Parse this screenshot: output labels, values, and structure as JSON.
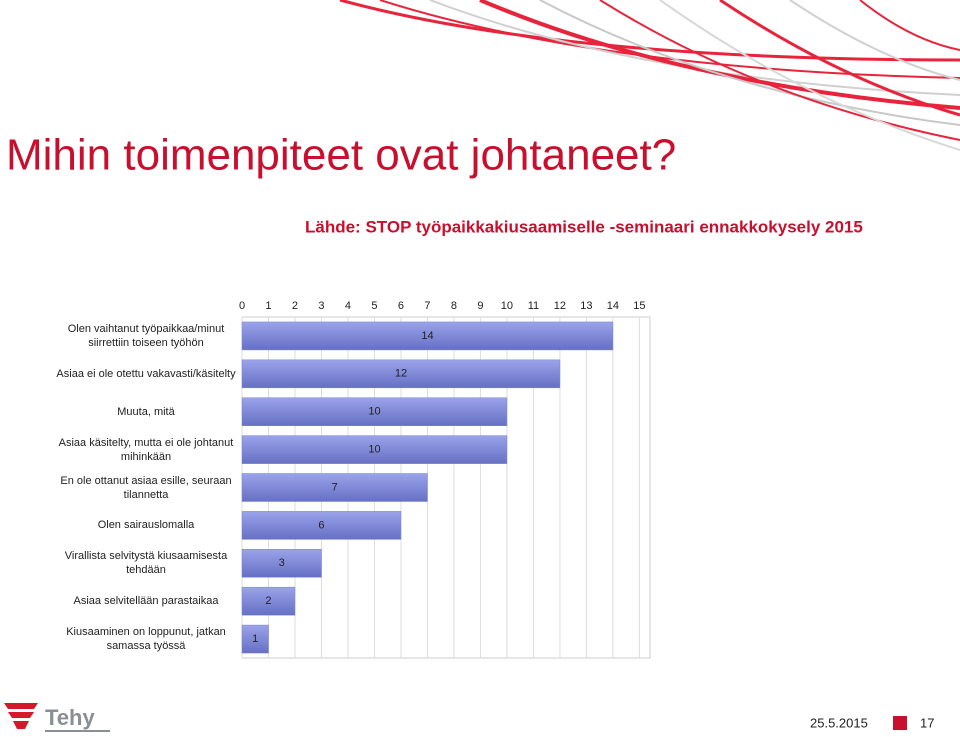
{
  "chart_data": {
    "type": "bar",
    "orientation": "horizontal",
    "title": "Mihin toimenpiteet ovat johtaneet?",
    "subtitle": "Lähde: STOP työpaikkakiusaamiselle -seminaari ennakkokysely 2015",
    "categories": [
      "Olen vaihtanut työpaikkaa/minut siirrettiin toiseen työhön",
      "Asiaa ei ole otettu vakavasti/käsitelty",
      "Muuta, mitä",
      "Asiaa käsitelty, mutta ei ole johtanut mihinkään",
      "En ole ottanut asiaa esille, seuraan tilannetta",
      "Olen sairauslomalla",
      "Virallista selvitystä kiusaamisesta tehdään",
      "Asiaa selvitellään parastaikaa",
      "Kiusaaminen on loppunut, jatkan samassa työssä"
    ],
    "values": [
      14,
      12,
      10,
      10,
      7,
      6,
      3,
      2,
      1
    ],
    "color": "#7a84d6",
    "xlim": [
      0,
      15.4
    ],
    "xticks": [
      0,
      1,
      2,
      3,
      4,
      5,
      6,
      7,
      8,
      9,
      10,
      11,
      12,
      13,
      14,
      15
    ],
    "grid": true
  },
  "footer": {
    "logo": "Tehy",
    "date": "25.5.2015",
    "page": "17"
  }
}
